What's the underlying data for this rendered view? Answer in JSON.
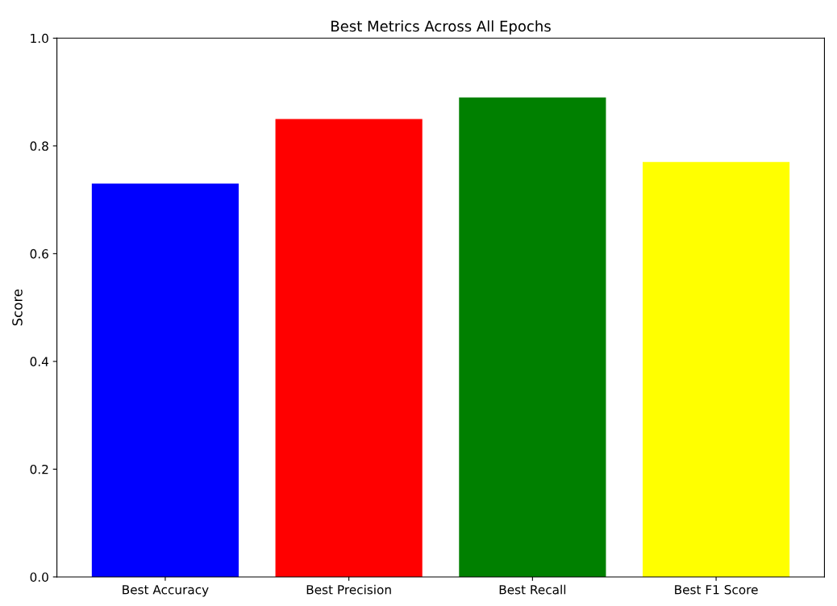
{
  "chart_data": {
    "type": "bar",
    "title": "Best Metrics Across All Epochs",
    "ylabel": "Score",
    "categories": [
      "Best Accuracy",
      "Best Precision",
      "Best Recall",
      "Best F1 Score"
    ],
    "values": [
      0.73,
      0.85,
      0.89,
      0.77
    ],
    "colors": [
      "#0000ff",
      "#ff0000",
      "#008000",
      "#ffff00"
    ],
    "ylim": [
      0,
      1.0
    ],
    "yticks": [
      {
        "value": 0,
        "label": "0.0"
      },
      0.2,
      0.4,
      0.6,
      0.8,
      {
        "value": 1.0,
        "label": "1.0"
      }
    ]
  }
}
